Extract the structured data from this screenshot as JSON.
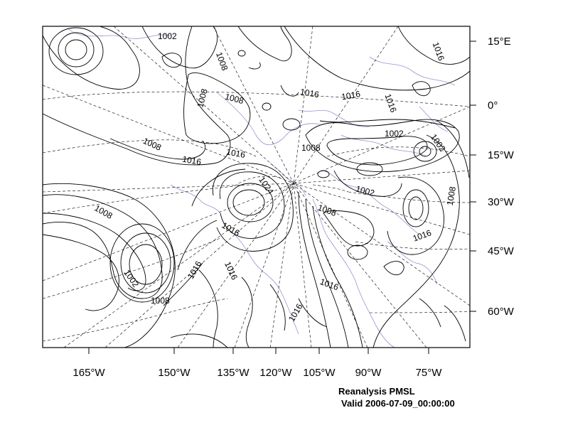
{
  "map": {
    "longitude_labels": [
      "165°W",
      "150°W",
      "135°W",
      "120°W",
      "105°W",
      "90°W",
      "75°W"
    ],
    "latitude_labels": [
      "15°E",
      "0°",
      "15°W",
      "30°W",
      "45°W",
      "60°W"
    ],
    "contour_labels": [
      "1002",
      "1008",
      "1008",
      "1008",
      "1016",
      "1016",
      "1016",
      "1016",
      "1008",
      "1016",
      "1016",
      "1008",
      "1002",
      "1002",
      "1002",
      "1008",
      "1024",
      "1008",
      "1016",
      "1016",
      "1008",
      "1016",
      "1016",
      "1002",
      "1008",
      "1016",
      "1016"
    ],
    "colors": {
      "contour": "#000000",
      "coastline": "#a08ed0",
      "grid": "#000000"
    }
  },
  "caption": {
    "title": "Reanalysis PMSL",
    "valid": "Valid 2006-07-09_00:00:00"
  }
}
